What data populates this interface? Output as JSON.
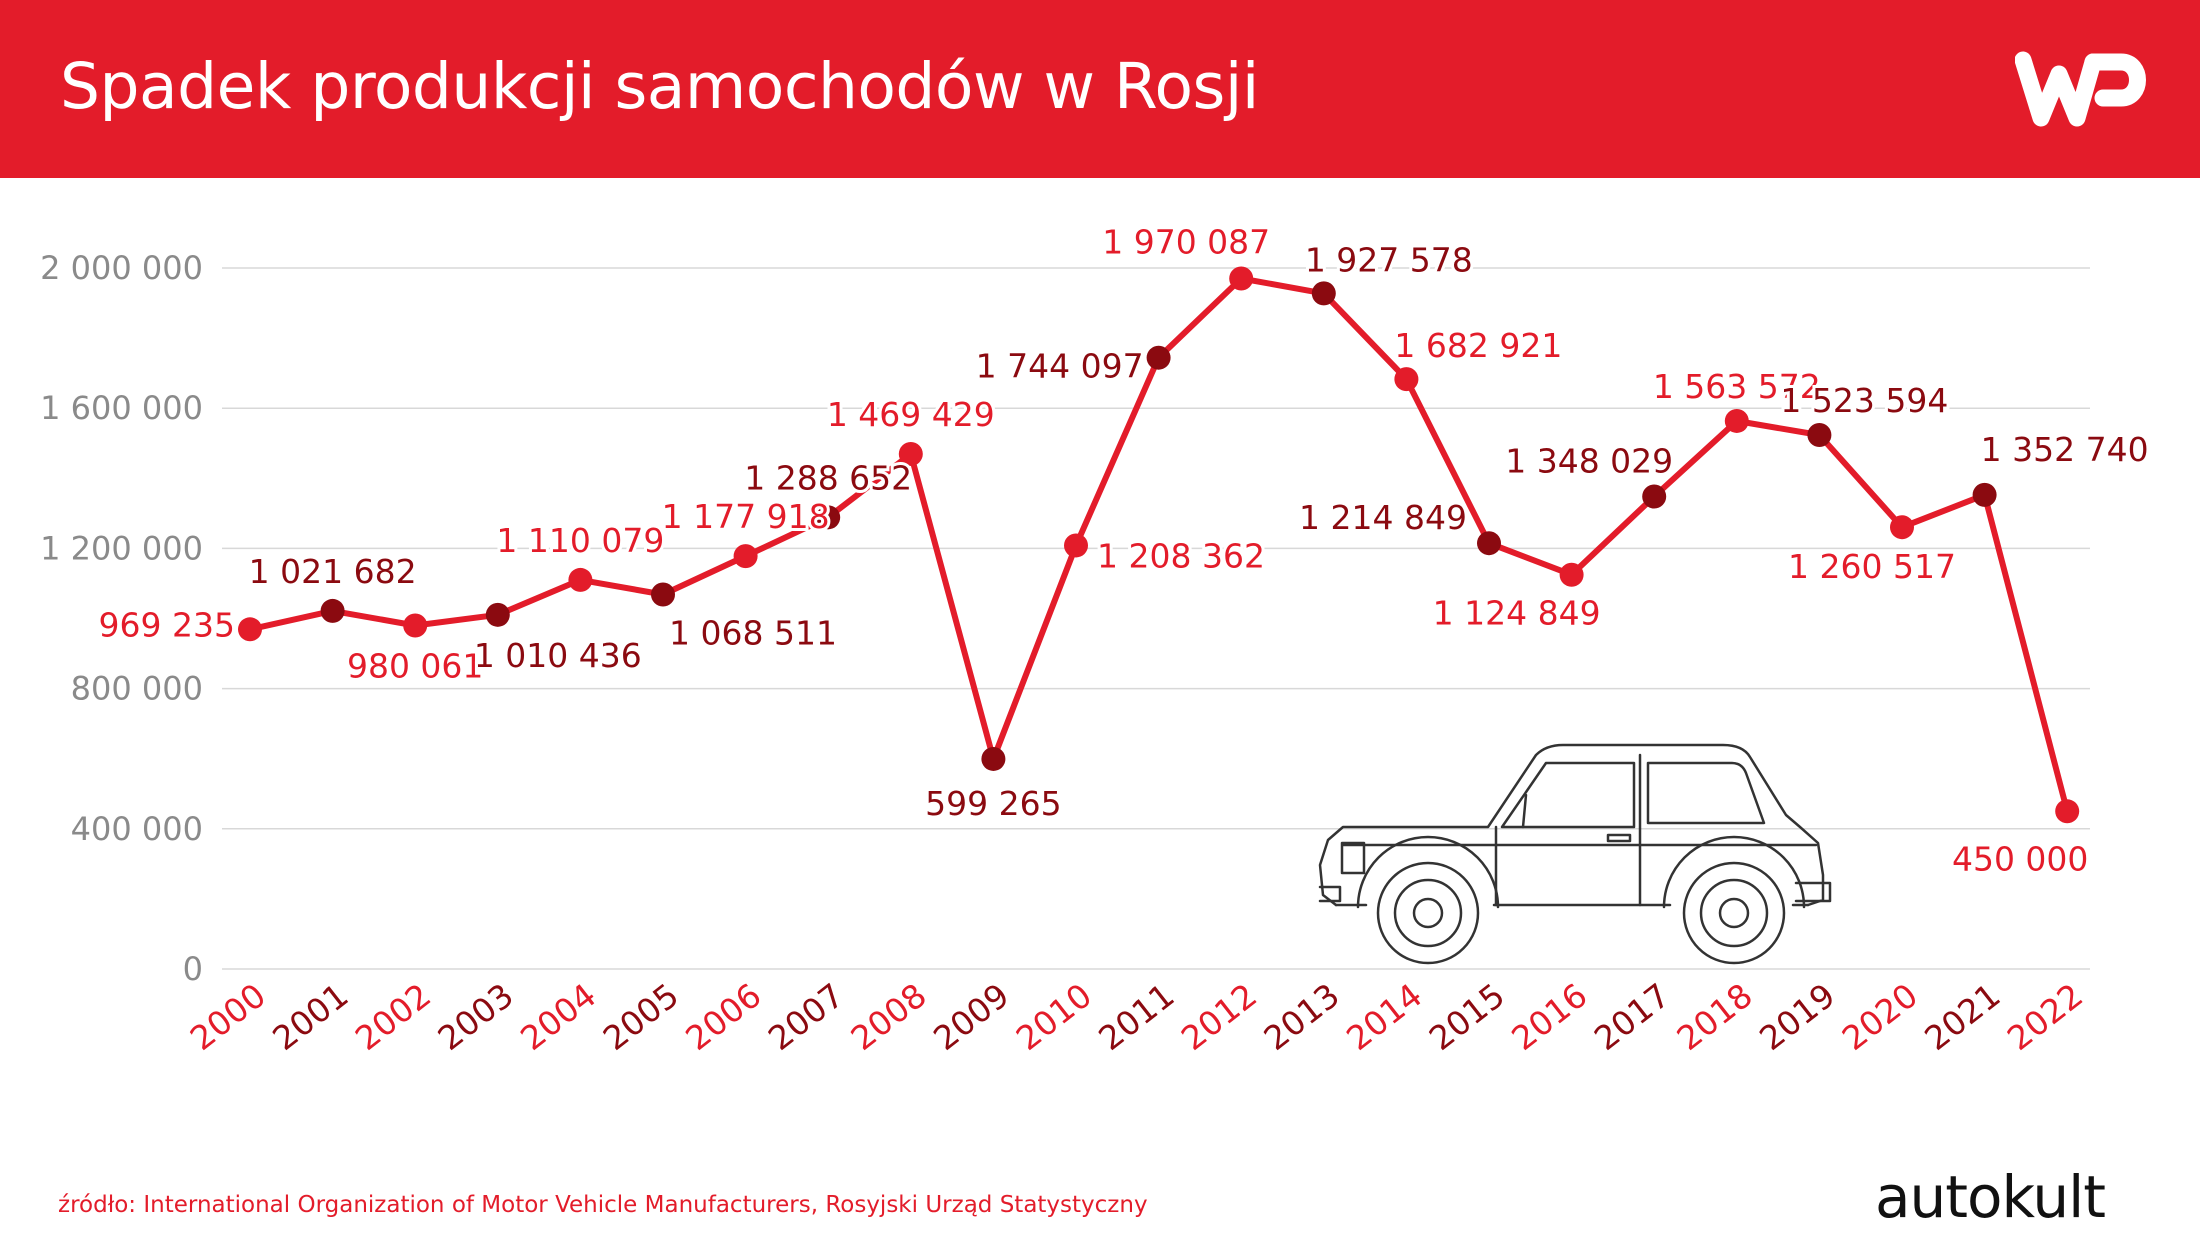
{
  "header": {
    "title": "Spadek produkcji samochodów w Rosji",
    "logo": "WP",
    "background": "#e31c2a"
  },
  "footer": {
    "source": "źródło: International Organization of Motor Vehicle Manufacturers, Rosyjski Urząd Statystyczny",
    "brand": "autokult"
  },
  "colors": {
    "accent": "#e31c2a",
    "line": "#e31c2a",
    "marker_light": "#e31c2a",
    "marker_dark": "#8b0a10",
    "grid": "#d8d8d8",
    "axis_text": "#8a8a8a"
  },
  "illustration": {
    "icon": "car-icon"
  },
  "chart_data": {
    "type": "line",
    "title": "Spadek produkcji samochodów w Rosji",
    "xlabel": "",
    "ylabel": "",
    "ylim": [
      0,
      2000000
    ],
    "yticks": [
      0,
      400000,
      800000,
      1200000,
      1600000,
      2000000
    ],
    "ytick_labels": [
      "0",
      "400 000",
      "800 000",
      "1 200 000",
      "1 600 000",
      "2 000 000"
    ],
    "grid": true,
    "legend": "none",
    "categories": [
      "2000",
      "2001",
      "2002",
      "2003",
      "2004",
      "2005",
      "2006",
      "2007",
      "2008",
      "2009",
      "2010",
      "2011",
      "2012",
      "2013",
      "2014",
      "2015",
      "2016",
      "2017",
      "2018",
      "2019",
      "2020",
      "2021",
      "2022"
    ],
    "series": [
      {
        "values": [
          969235,
          1021682,
          980061,
          1010436,
          1110079,
          1068511,
          1177918,
          1288652,
          1469429,
          599265,
          1208362,
          1744097,
          1970087,
          1927578,
          1682921,
          1214849,
          1124849,
          1348029,
          1563572,
          1523594,
          1260517,
          1352740,
          450000
        ],
        "labels": [
          "969 235",
          "1 021 682",
          "980 061",
          "1 010 436",
          "1 110 079",
          "1 068 511",
          "1 177 918",
          "1 288 652",
          "1 469 429",
          "599 265",
          "1 208 362",
          "1 744 097",
          "1 970 087",
          "1 927 578",
          "1 682 921",
          "1 214 849",
          "1 124 849",
          "1 348 029",
          "1 563 572",
          "1 523 594",
          "1 260 517",
          "1 352 740",
          "450 000"
        ]
      }
    ]
  }
}
